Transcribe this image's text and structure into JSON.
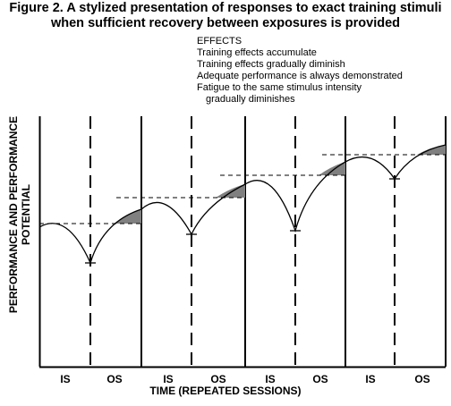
{
  "figure": {
    "title_line1": "Figure 2. A stylized presentation of responses to exact training stimuli",
    "title_line2": "when sufficient recovery between exposures is provided"
  },
  "effects": {
    "heading": "EFFECTS",
    "items": [
      "Training effects accumulate",
      "Training effects gradually diminish",
      "Adequate performance is always demonstrated",
      "Fatigue to the same stimulus intensity",
      "gradually diminishes"
    ]
  },
  "axes": {
    "y_label_line1": "PERFORMANCE AND PERFORMANCE",
    "y_label_line2": "POTENTIAL",
    "x_label": "TIME (REPEATED SESSIONS)"
  },
  "phases": [
    "IS",
    "OS",
    "IS",
    "OS",
    "IS",
    "OS",
    "IS",
    "OS"
  ],
  "colors": {
    "line": "#000000",
    "shade": "#808080",
    "background": "#ffffff"
  }
}
